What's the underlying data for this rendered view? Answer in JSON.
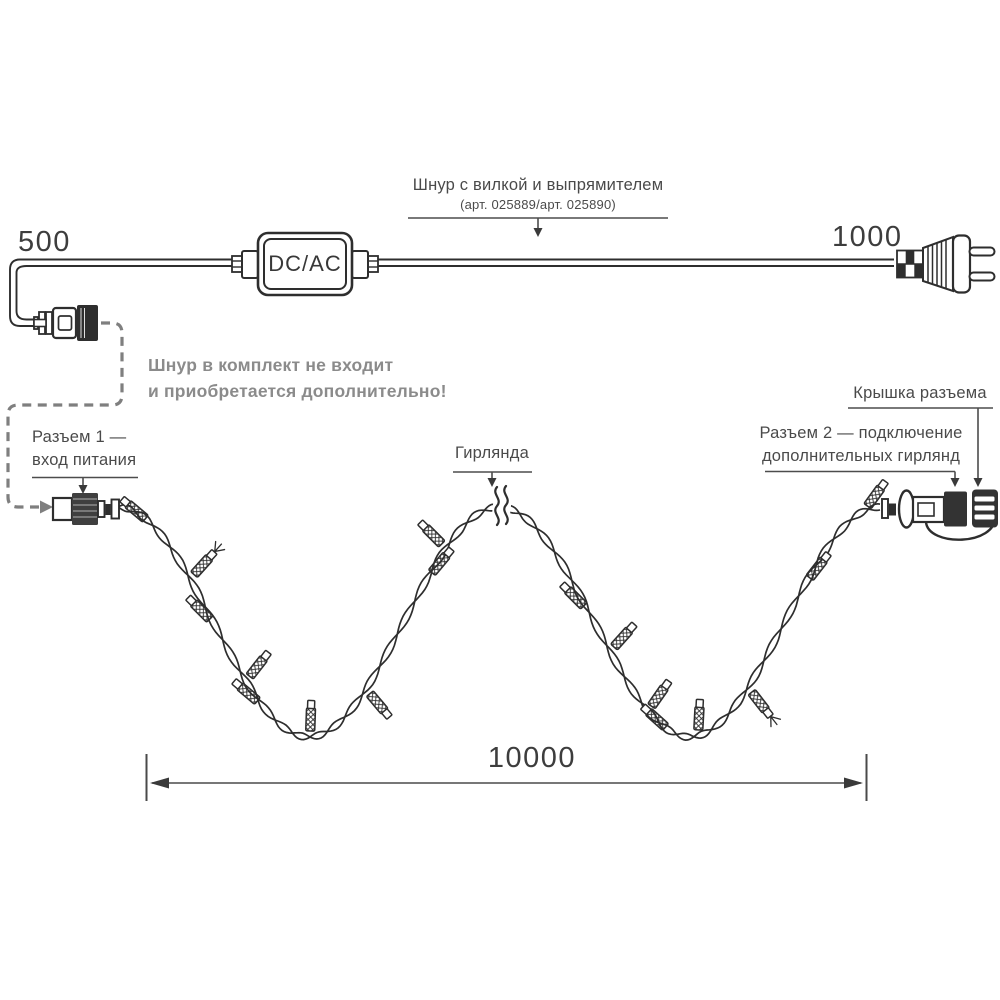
{
  "labels": {
    "cord_title": "Шнур с вилкой и выпрямителем",
    "cord_subtitle": "(арт. 025889/арт. 025890)",
    "converter": "DC/AC",
    "len_cord_left": "500",
    "len_cord_right": "1000",
    "len_garland": "10000",
    "note_line1": "Шнур в комплект не входит",
    "note_line2": "и приобретается дополнительно!",
    "connector1_line1": "Разъем 1 —",
    "connector1_line2": "вход питания",
    "garland": "Гирлянда",
    "cap": "Крышка разъема",
    "connector2_line1": "Разъем 2 — подключение",
    "connector2_line2": "дополнительных гирлянд"
  },
  "colors": {
    "line": "#2e2e2e",
    "label_text": "#4a4a4a",
    "pointer_line": "#4d4d4d",
    "note_text": "#8b8b8b",
    "dashed": "#7f7f7f"
  }
}
